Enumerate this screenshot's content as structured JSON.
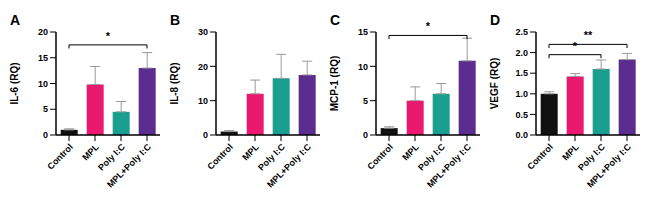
{
  "chart_data": [
    {
      "type": "bar",
      "title": "A",
      "y_label": "IL-6 (RQ)",
      "categories": [
        "Control",
        "MPL",
        "Poly I:C",
        "MPL+Poly I:C"
      ],
      "values": [
        1.0,
        9.8,
        4.5,
        13.0
      ],
      "errors": [
        0.2,
        3.5,
        2.0,
        3.0
      ],
      "colors": [
        "#111111",
        "#e8196e",
        "#1a9e8f",
        "#5b2d8e"
      ],
      "ylim": [
        0,
        20
      ],
      "yticks": [
        0,
        5,
        10,
        15,
        20
      ],
      "annotations": [
        {
          "from": "Control",
          "to": "MPL+Poly I:C",
          "y": 17.5,
          "label": "*"
        }
      ]
    },
    {
      "type": "bar",
      "title": "B",
      "y_label": "IL-8 (RQ)",
      "categories": [
        "Control",
        "MPL",
        "Poly I:C",
        "MPL+Poly I:C"
      ],
      "values": [
        1.0,
        12.0,
        16.5,
        17.5
      ],
      "errors": [
        0.3,
        4.0,
        7.0,
        4.0
      ],
      "colors": [
        "#111111",
        "#e8196e",
        "#1a9e8f",
        "#5b2d8e"
      ],
      "ylim": [
        0,
        30
      ],
      "yticks": [
        0,
        10,
        20,
        30
      ],
      "annotations": []
    },
    {
      "type": "bar",
      "title": "C",
      "y_label": "MCP-1 (RQ)",
      "categories": [
        "Control",
        "MPL",
        "Poly I:C",
        "MPL+Poly I:C"
      ],
      "values": [
        1.0,
        5.0,
        6.0,
        10.8
      ],
      "errors": [
        0.2,
        2.0,
        1.5,
        3.3
      ],
      "colors": [
        "#111111",
        "#e8196e",
        "#1a9e8f",
        "#5b2d8e"
      ],
      "ylim": [
        0,
        15
      ],
      "yticks": [
        0,
        5,
        10,
        15
      ],
      "annotations": [
        {
          "from": "Control",
          "to": "MPL+Poly I:C",
          "y": 14.5,
          "label": "*"
        }
      ]
    },
    {
      "type": "bar",
      "title": "D",
      "y_label": "VEGF (RQ)",
      "categories": [
        "Control",
        "MPL",
        "Poly I:C",
        "MPL+Poly I:C"
      ],
      "values": [
        1.0,
        1.42,
        1.6,
        1.83
      ],
      "errors": [
        0.05,
        0.07,
        0.22,
        0.15
      ],
      "colors": [
        "#111111",
        "#e8196e",
        "#1a9e8f",
        "#5b2d8e"
      ],
      "ylim": [
        0,
        2.5
      ],
      "yticks": [
        {
          "value": 0,
          "label": "0.0"
        },
        0.5,
        {
          "value": 1,
          "label": "1.0"
        },
        1.5,
        {
          "value": 2,
          "label": "2.0"
        },
        2.5
      ],
      "annotations": [
        {
          "from": "Control",
          "to": "Poly I:C",
          "y": 1.95,
          "label": "*"
        },
        {
          "from": "Control",
          "to": "MPL+Poly I:C",
          "y": 2.2,
          "label": "**"
        }
      ]
    }
  ]
}
